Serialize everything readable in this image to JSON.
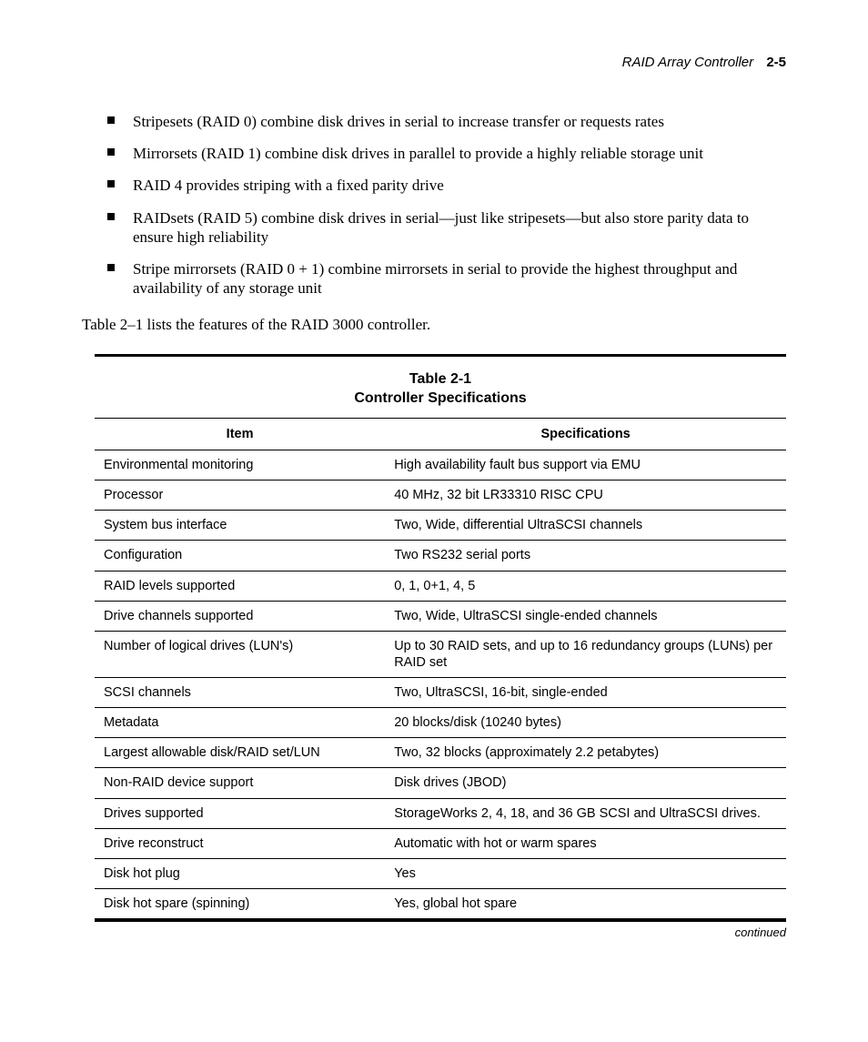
{
  "header": {
    "title": "RAID Array Controller",
    "page_number": "2-5"
  },
  "bullets": [
    "Stripesets (RAID 0) combine disk drives in serial to increase transfer or requests rates",
    "Mirrorsets (RAID 1) combine disk drives in parallel to provide a highly reliable storage unit",
    "RAID 4 provides striping with a fixed parity drive",
    "RAIDsets (RAID 5) combine disk drives in serial—just like stripesets—but also store parity data to ensure high reliability",
    "Stripe mirrorsets (RAID 0 + 1) combine mirrorsets in serial to provide the highest throughput and availability of any storage unit"
  ],
  "lead_in": "Table 2–1 lists the features of the RAID 3000 controller.",
  "table": {
    "caption_line1": "Table 2-1",
    "caption_line2": "Controller Specifications",
    "columns": [
      "Item",
      "Specifications"
    ],
    "rows": [
      [
        "Environmental monitoring",
        "High availability fault bus support via EMU"
      ],
      [
        "Processor",
        "40 MHz, 32 bit LR33310 RISC CPU"
      ],
      [
        "System bus interface",
        "Two, Wide, differential UltraSCSI channels"
      ],
      [
        "Configuration",
        "Two RS232 serial ports"
      ],
      [
        "RAID levels supported",
        "0, 1, 0+1, 4, 5"
      ],
      [
        "Drive channels supported",
        "Two, Wide, UltraSCSI single-ended channels"
      ],
      [
        "Number of logical drives (LUN's)",
        "Up to 30 RAID sets, and up to 16 redundancy groups (LUNs) per RAID set"
      ],
      [
        "SCSI channels",
        "Two, UltraSCSI, 16-bit, single-ended"
      ],
      [
        "Metadata",
        "20 blocks/disk (10240 bytes)"
      ],
      [
        "Largest allowable disk/RAID set/LUN",
        "Two, 32 blocks (approximately 2.2 petabytes)"
      ],
      [
        "Non-RAID device support",
        "Disk drives (JBOD)"
      ],
      [
        "Drives supported",
        "StorageWorks 2, 4, 18, and 36 GB SCSI and UltraSCSI drives."
      ],
      [
        "Drive reconstruct",
        "Automatic with hot or warm spares"
      ],
      [
        "Disk hot plug",
        "Yes"
      ],
      [
        "Disk hot spare (spinning)",
        "Yes, global hot spare"
      ]
    ],
    "continued_label": "continued"
  }
}
